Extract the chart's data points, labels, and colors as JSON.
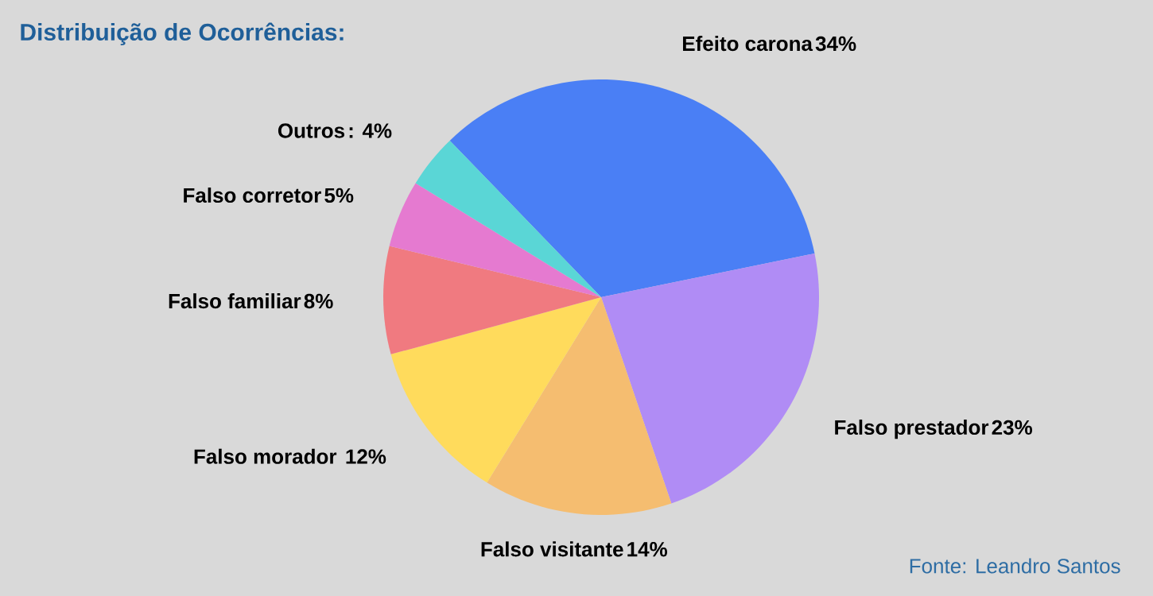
{
  "chart_data": {
    "type": "pie",
    "title": "Distribuição de Ocorrências:",
    "categories": [
      "Efeito carona",
      "Falso prestador",
      "Falso visitante",
      "Falso morador ",
      "Falso familiar",
      "Falso corretor",
      "Outros"
    ],
    "values": [
      34,
      23,
      14,
      12,
      8,
      5,
      4
    ],
    "value_labels": [
      "34%",
      "23%",
      "14%",
      "12%",
      "8%",
      "5%",
      ": 4%"
    ],
    "colors": [
      "#4a7ff5",
      "#b08cf5",
      "#f5bd70",
      "#ffdb5c",
      "#f07a80",
      "#e57ad0",
      "#5ad6d6"
    ],
    "annotations": [
      "Fonte: Leandro Santos"
    ]
  }
}
